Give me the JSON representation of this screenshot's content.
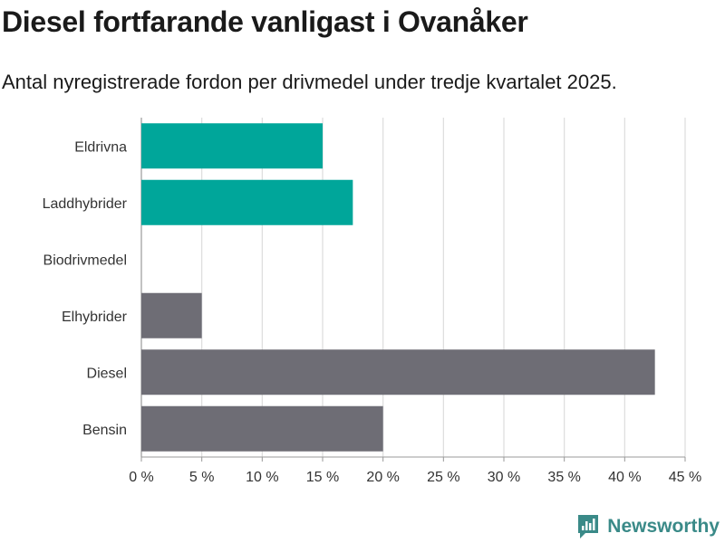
{
  "chart_data": {
    "type": "bar",
    "orientation": "horizontal",
    "title": "Diesel fortfarande vanligast i Ovanåker",
    "subtitle": "Antal nyregistrerade fordon per drivmedel under tredje kvartalet 2025.",
    "categories": [
      "Eldrivna",
      "Laddhybrider",
      "Biodrivmedel",
      "Elhybrider",
      "Diesel",
      "Bensin"
    ],
    "values": [
      15,
      17.5,
      0,
      5,
      42.5,
      20
    ],
    "colors": [
      "#00a69a",
      "#00a69a",
      "#00a69a",
      "#6e6d75",
      "#6e6d75",
      "#6e6d75"
    ],
    "xlim": [
      0,
      45
    ],
    "xticks": [
      0,
      5,
      10,
      15,
      20,
      25,
      30,
      35,
      40,
      45
    ],
    "tick_suffix": " %",
    "xlabel": "",
    "ylabel": "",
    "grid": true
  },
  "branding": {
    "logo_text": "Newsworthy",
    "logo_color": "#3a8a88"
  }
}
